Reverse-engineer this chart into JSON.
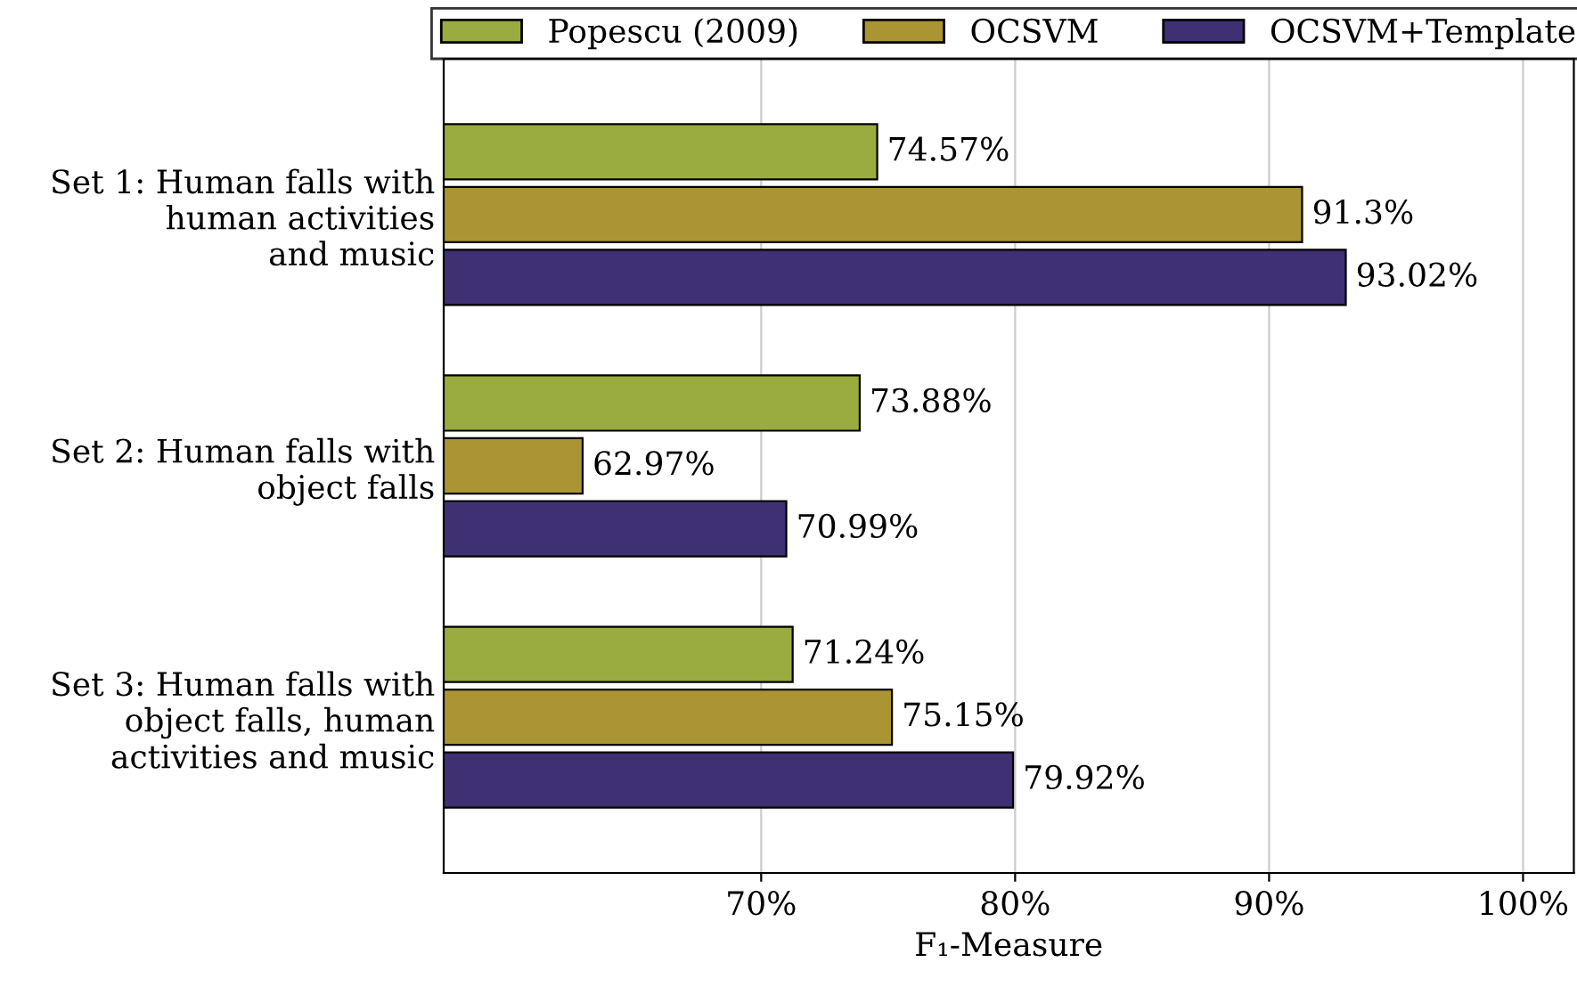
{
  "chart_data": {
    "type": "bar",
    "orientation": "horizontal",
    "xlabel": "F₁-Measure",
    "categories": [
      "Set 1: Human falls with\nhuman activities\nand music",
      "Set 2: Human falls with\nobject falls",
      "Set 3: Human falls with\nobject falls, human\nactivities and music"
    ],
    "series": [
      {
        "name": "Popescu (2009)",
        "color": "#9aab3f",
        "values": [
          74.57,
          73.88,
          71.24
        ],
        "value_labels": [
          "74.57%",
          "73.88%",
          "71.24%"
        ]
      },
      {
        "name": "OCSVM",
        "color": "#ab9434",
        "values": [
          91.3,
          62.97,
          75.15
        ],
        "value_labels": [
          "91.3%",
          "62.97%",
          "75.15%"
        ]
      },
      {
        "name": "OCSVM+Template",
        "color": "#3f2f73",
        "values": [
          93.02,
          70.99,
          79.92
        ],
        "value_labels": [
          "93.02%",
          "70.99%",
          "79.92%"
        ]
      }
    ],
    "xlim": [
      57.5,
      102
    ],
    "xticks": [
      {
        "value": 70,
        "label": "70%"
      },
      {
        "value": 80,
        "label": "80%"
      },
      {
        "value": 90,
        "label": "90%"
      },
      {
        "value": 100,
        "label": "100%"
      }
    ],
    "grid": "x",
    "legend": "top"
  }
}
